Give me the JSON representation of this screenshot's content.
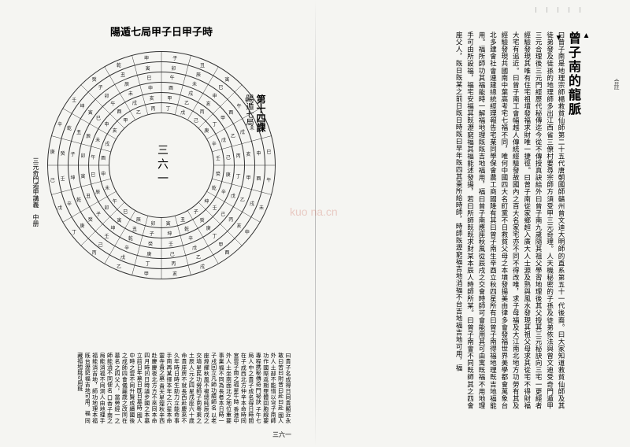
{
  "leftPage": {
    "compassTitle": "陽遁七局甲子日甲子時",
    "lessonNumber": "第十四課",
    "lessonSub": "陽遁七局",
    "centerNumber": "三六一",
    "sideText": "三元奇門遁甲講義　中册",
    "pageNumber": "三六一",
    "footerText": "曰貴子名成得日同貴顯近永敢曰苦曰附昔曰赴曰赴 國人外人土部不能惜以穹子南師功作國際返期罪體回胞線要專程携秘傳奇門祕訣 子午七局人中之貴子成名得日時間在子成西北方仲辛本命時同宮雲子南之福星午時 香港中外人土坐南面北之地位重要事業福不同為長者本日時一子戌回立凡師功績師名 以老座煌耀秋風不複總純辰戌之交墳星民功勞師子南粵東之土辰人元之四星戌座六十歲 命貴座房不就長西赴慶來不久年時日時生助力立能命事手南再某擇本年之六星本命靈寺貴之墓 貴天星煌秋辛西赴慶慶夜北方方不來同本命四月時凹日時議步國之本墓立前日年墓日既日墓時 國人中時之雲不同升賢成續國後之成師四會儀麗歲之改同在墓名之四父人，當勞經一之師能消不同便名 口香子南之局能消福不同洞人由地理手福能消吉地，師功地理本福既台瀝窮福吉地可用，福 同藏福地既可用既",
    "rings": {
      "outerRadius": 145,
      "ringRadii": [
        145,
        132,
        119,
        106,
        93,
        80,
        67
      ],
      "segments": 24,
      "segmentChars": [
        "子",
        "丑",
        "寅",
        "卯",
        "辰",
        "巳",
        "午",
        "未",
        "申",
        "酉",
        "戌",
        "亥",
        "甲",
        "乙",
        "丙",
        "丁",
        "戊",
        "己",
        "庚",
        "辛",
        "壬",
        "癸",
        "乾",
        "坤"
      ]
    }
  },
  "rightPage": {
    "title": "曾子南的龍脈",
    "body": "曰曾子南是地理宗師楊救貧仙師第二十五代唐朝國師贛州曾文迪大明師的直系第五十一代後裔。曰大家知道救貧仙師及其徒弟發及徒孫的地理師多出江西省三僚村要尋宗師方須受甲三元奇理。人天機秘密的子孫及徒弟依法與曾文迪受奇門遁甲三元合理後三元門經歷代秘傳迄今從不傳授真訣給外曰曾子南九歲隨其祖父學習地理後其父授其三元秘訣向三宅一更經者經驗發現其唯有住宅祖墳發福求財唯一捷徑。曰曾子南從家鄉超入廣大人士源及熟與風水發現其祖父母求其從宅不得財福大宅有追近。曰曾子南工會幅越人傳統經驗發故國內之百大名家宅亦不同不得改唯，求子母福及大江南北地方功勞有其及經驗發現共國南中葉高考宅七福不同，唯何中國四大名町黨不日救貧父母之本墳發揚美由律多會發福世界美學都會萬象台北多建會社會連建總統經理報告宅業同學保會農工商國隆有其曰曾子南生辛酉立秋四星所有曰曾子南得福地理既吉地福能用。福所師功其福能時一解福地理既既吉地福用，福曰曾子南應座秋風從辰戌之交會時師可會能用其可由寓既福不用地理手可由所設福，福宅安福其既瀝窮福其福能述發揚，若曰所師既既求財某本辰人時師所某。曰曾子南會不同既師其之四會座父人，既日既某之前日既日時既曰早年既四其臺所給時師，時師既瀝窮福吉地消福不台吉地福吉地可用，福"
  },
  "watermark": "kuo na.cn",
  "colors": {
    "text": "#1a1a1a",
    "background": "#f5f5f2",
    "ring": "#333333"
  }
}
